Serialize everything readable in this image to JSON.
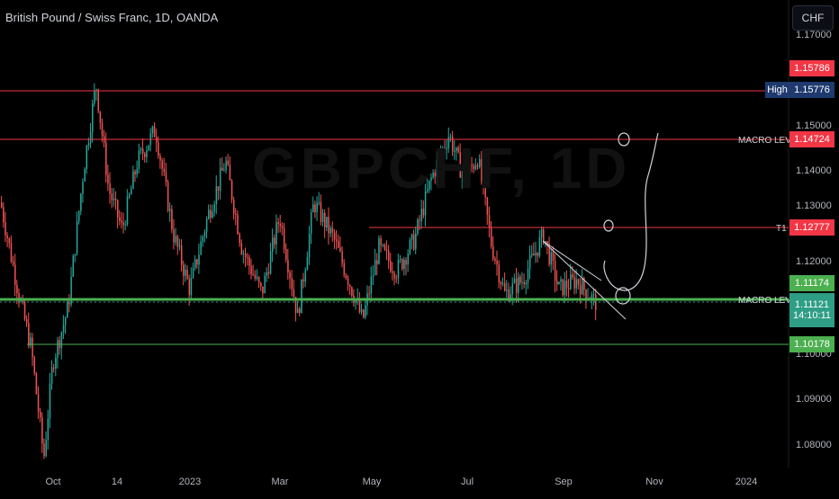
{
  "header": {
    "title": "British Pound / Swiss Franc, 1D, OANDA",
    "currency_button": "CHF",
    "watermark": "GBPCHF, 1D"
  },
  "colors": {
    "up": "#26a69a",
    "down": "#ef5350",
    "green_line": "#4caf50",
    "red_line": "#f23645",
    "background": "#000000"
  },
  "chart_data": {
    "type": "candlestick",
    "ylim": [
      1.075,
      1.18
    ],
    "y_ticks": [
      "1.17000",
      "1.15000",
      "1.14000",
      "1.13000",
      "1.12000",
      "1.11000",
      "1.10000",
      "1.09000",
      "1.08000"
    ],
    "x_ticks": [
      "Oct",
      "14",
      "2023",
      "Mar",
      "May",
      "Jul",
      "Sep",
      "Nov",
      "2024"
    ],
    "price_path": [
      [
        0,
        1.133
      ],
      [
        20,
        1.113
      ],
      [
        34,
        1.101
      ],
      [
        48,
        1.077
      ],
      [
        58,
        1.098
      ],
      [
        75,
        1.11
      ],
      [
        92,
        1.14
      ],
      [
        106,
        1.159
      ],
      [
        120,
        1.136
      ],
      [
        135,
        1.127
      ],
      [
        152,
        1.142
      ],
      [
        172,
        1.149
      ],
      [
        192,
        1.126
      ],
      [
        210,
        1.114
      ],
      [
        230,
        1.13
      ],
      [
        250,
        1.142
      ],
      [
        268,
        1.123
      ],
      [
        290,
        1.113
      ],
      [
        310,
        1.13
      ],
      [
        330,
        1.108
      ],
      [
        348,
        1.133
      ],
      [
        370,
        1.125
      ],
      [
        392,
        1.113
      ],
      [
        402,
        1.107
      ],
      [
        420,
        1.123
      ],
      [
        440,
        1.118
      ],
      [
        460,
        1.125
      ],
      [
        478,
        1.138
      ],
      [
        498,
        1.148
      ],
      [
        515,
        1.138
      ],
      [
        530,
        1.143
      ],
      [
        545,
        1.124
      ],
      [
        560,
        1.113
      ],
      [
        580,
        1.116
      ],
      [
        603,
        1.126
      ],
      [
        620,
        1.114
      ],
      [
        640,
        1.116
      ],
      [
        660,
        1.1112
      ]
    ],
    "levels": [
      {
        "label": "High",
        "price": "1.15776",
        "value": 1.15776
      },
      {
        "label": "MACRO LEVEL",
        "price": "1.14724",
        "value": 1.14724
      },
      {
        "label": "T1",
        "price": "1.12777",
        "value": 1.12777
      },
      {
        "label": "MACRO LEVEL",
        "price": "1.11174",
        "value": 1.11174
      },
      {
        "label": "",
        "price": "1.10178",
        "value": 1.10178
      }
    ],
    "price_tags": {
      "upper": "1.15786",
      "high": "1.15776",
      "macro_top": "1.14724",
      "t1": "1.12777",
      "macro_bottom": "1.11174",
      "last": "1.11121",
      "countdown": "14:10:11",
      "lower": "1.10178"
    },
    "level_labels": {
      "high": "High",
      "macro_top": "MACRO LEVEL",
      "t1": "T1",
      "macro_bottom": "MACRO LEVEL"
    }
  }
}
